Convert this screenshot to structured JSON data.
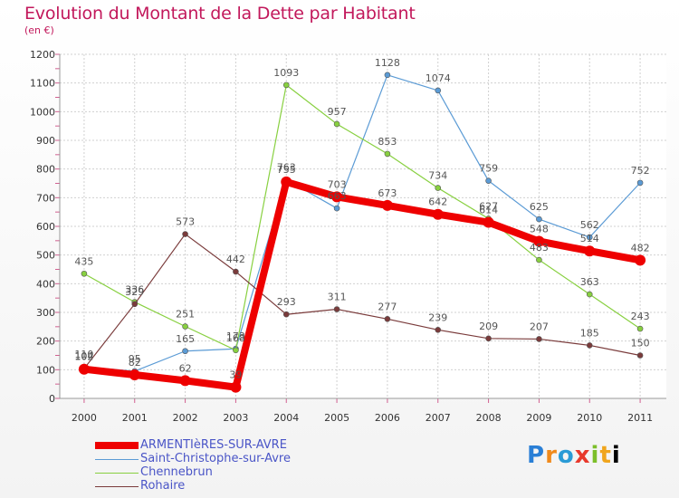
{
  "chart_data": {
    "type": "line",
    "title": "Evolution du Montant de la Dette par Habitant",
    "subtitle": "(en €)",
    "xlabel": "",
    "ylabel": "",
    "categories": [
      "2000",
      "2001",
      "2002",
      "2003",
      "2004",
      "2005",
      "2006",
      "2007",
      "2008",
      "2009",
      "2010",
      "2011"
    ],
    "ylim": [
      0,
      1200
    ],
    "yticks": [
      0,
      100,
      200,
      300,
      400,
      500,
      600,
      700,
      800,
      900,
      1000,
      1100,
      1200
    ],
    "grid": true,
    "series": [
      {
        "name": "ARMENTIèRES-SUR-AVRE",
        "color": "#ee0000",
        "emphasis": true,
        "values": [
          102,
          82,
          62,
          39,
          755,
          703,
          673,
          642,
          614,
          548,
          514,
          482
        ]
      },
      {
        "name": "Saint-Christophe-sur-Avre",
        "color": "#5b9bd5",
        "emphasis": false,
        "values": [
          110,
          95,
          165,
          173,
          763,
          663,
          1128,
          1074,
          759,
          625,
          562,
          752
        ]
      },
      {
        "name": "Chennebrun",
        "color": "#88d040",
        "emphasis": false,
        "values": [
          435,
          336,
          251,
          168,
          1093,
          957,
          853,
          734,
          627,
          483,
          363,
          243
        ]
      },
      {
        "name": "Rohaire",
        "color": "#7a3b3b",
        "emphasis": false,
        "values": [
          104,
          329,
          573,
          442,
          293,
          311,
          277,
          239,
          209,
          207,
          185,
          150
        ]
      }
    ]
  },
  "logo": {
    "letters": [
      "P",
      "r",
      "o",
      "x",
      "i",
      "t",
      "i"
    ]
  }
}
